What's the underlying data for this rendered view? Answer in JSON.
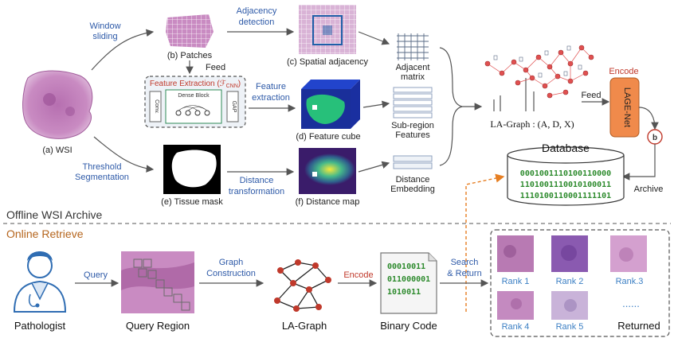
{
  "offline": {
    "section_label": "Offline WSI Archive",
    "wsi_label": "(a) WSI",
    "window_sliding": [
      "Window",
      "sliding"
    ],
    "threshold_segmentation": [
      "Threshold",
      "Segmentation"
    ],
    "patches_label": "(b) Patches",
    "feed_label": "Feed",
    "feature_extraction_title": "Feature Extraction (ℱ",
    "feature_extraction_sub": "CNN",
    "dense_block": "Dense Block",
    "conv": "Conv.",
    "gap": "GAP",
    "tissue_mask_label": "(e) Tissue mask",
    "adjacency_detection": [
      "Adjacency",
      "detection"
    ],
    "feature_extraction_arrow": [
      "Feature",
      "extraction"
    ],
    "distance_transformation": [
      "Distance",
      "transformation"
    ],
    "spatial_adjacency_label": "(c) Spatial adjacency",
    "feature_cube_label": "(d) Feature cube",
    "distance_map_label": "(f) Distance map",
    "adjacent_matrix": [
      "Adjacent",
      "matrix"
    ],
    "subregion_features": [
      "Sub-region",
      "Features"
    ],
    "distance_embedding": [
      "Distance",
      "Embedding"
    ],
    "la_graph_label": "LA-Graph : (A, D, X)",
    "feed2": "Feed",
    "encode_label": "Encode",
    "lage_net": "LAGE-Net",
    "b_node": "b",
    "database_title": "Database",
    "db_codes": [
      "0001001110100110000",
      "1101001110010100011",
      "1110100110001111101"
    ],
    "archive_label": "Archive"
  },
  "online": {
    "section_label": "Online Retrieve",
    "pathologist": "Pathologist",
    "query": "Query",
    "query_region": "Query Region",
    "graph_construction": [
      "Graph",
      "Construction"
    ],
    "la_graph": "LA-Graph",
    "encode": "Encode",
    "binary_codes": [
      "00010011",
      "011000001",
      "1010011"
    ],
    "binary_code_label": "Binary Code",
    "search_return": [
      "Search",
      "& Return"
    ],
    "ranks": [
      "Rank 1",
      "Rank 2",
      "Rank.3",
      "Rank 4",
      "Rank 5"
    ],
    "ellipsis": "......",
    "returned": "Returned"
  },
  "colors": {
    "arrow": "#555555",
    "text_blue": "#2e5aa8",
    "encode_red": "#c0392b",
    "lage_orange": "#f08a4b",
    "code_green": "#2e8b2e",
    "dashed_orange": "#e67e22",
    "tissue_pink": "#c98bc2"
  }
}
